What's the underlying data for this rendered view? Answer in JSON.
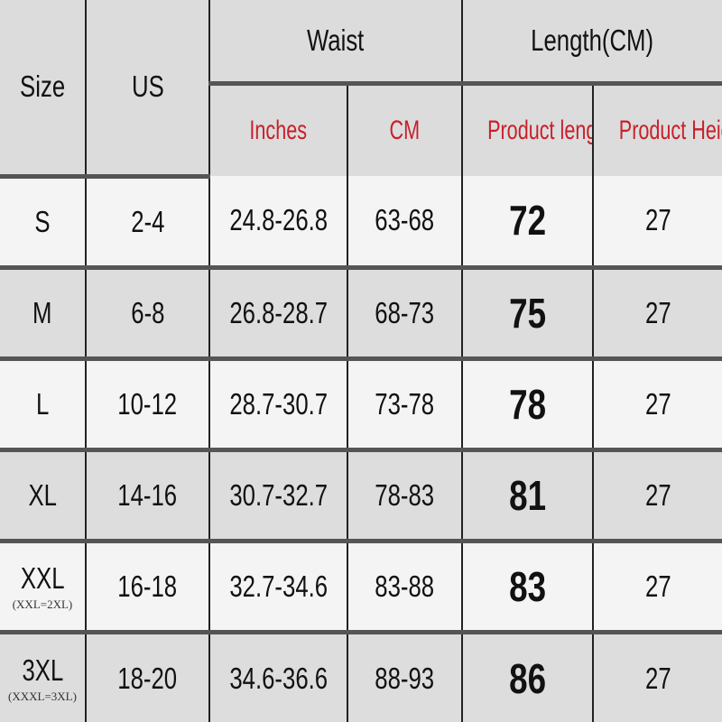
{
  "header": {
    "size": "Size",
    "us": "US",
    "waist": "Waist",
    "length": "Length(CM)",
    "inches": "Inches",
    "cm": "CM",
    "product_length": "Product length",
    "product_height": "Product Height"
  },
  "colors": {
    "header_bg": "#dcdcdc",
    "subheader_text": "#c8202a",
    "row_light": "#f4f4f4",
    "row_dark": "#dddddd"
  },
  "rows": [
    {
      "size": "S",
      "note": "",
      "us": "2-4",
      "inches": "24.8-26.8",
      "cm": "63-68",
      "length": "72",
      "height": "27"
    },
    {
      "size": "M",
      "note": "",
      "us": "6-8",
      "inches": "26.8-28.7",
      "cm": "68-73",
      "length": "75",
      "height": "27"
    },
    {
      "size": "L",
      "note": "",
      "us": "10-12",
      "inches": "28.7-30.7",
      "cm": "73-78",
      "length": "78",
      "height": "27"
    },
    {
      "size": "XL",
      "note": "",
      "us": "14-16",
      "inches": "30.7-32.7",
      "cm": "78-83",
      "length": "81",
      "height": "27"
    },
    {
      "size": "XXL",
      "note": "(XXL=2XL)",
      "us": "16-18",
      "inches": "32.7-34.6",
      "cm": "83-88",
      "length": "83",
      "height": "27"
    },
    {
      "size": "3XL",
      "note": "(XXXL=3XL)",
      "us": "18-20",
      "inches": "34.6-36.6",
      "cm": "88-93",
      "length": "86",
      "height": "27"
    }
  ]
}
